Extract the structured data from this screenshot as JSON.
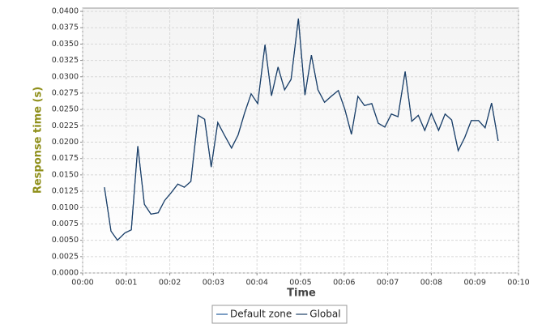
{
  "chart_data": {
    "type": "line",
    "x_label": "Time",
    "y_label": "Response time (s)",
    "x": [
      30,
      39,
      48,
      58,
      67,
      76,
      85,
      94,
      104,
      113,
      122,
      131,
      140,
      149,
      159,
      168,
      177,
      186,
      195,
      205,
      214,
      223,
      232,
      241,
      251,
      260,
      269,
      278,
      287,
      297,
      306,
      315,
      324,
      333,
      342,
      352,
      361,
      370,
      379,
      388,
      398,
      407,
      416,
      425,
      434,
      444,
      453,
      462,
      471,
      480,
      490,
      499,
      508,
      517,
      526,
      535,
      545,
      554,
      563,
      572
    ],
    "series": [
      {
        "name": "Default zone",
        "color": "#245e9c",
        "values": [
          0.0131,
          0.0064,
          0.005,
          0.0061,
          0.0066,
          0.0194,
          0.0105,
          0.009,
          0.0092,
          0.0111,
          0.0123,
          0.0136,
          0.0131,
          0.014,
          0.0241,
          0.0235,
          0.0162,
          0.023,
          0.0211,
          0.0191,
          0.0211,
          0.0245,
          0.0274,
          0.0259,
          0.0349,
          0.0271,
          0.0315,
          0.028,
          0.0296,
          0.0389,
          0.0272,
          0.0333,
          0.028,
          0.0261,
          0.027,
          0.0279,
          0.025,
          0.0212,
          0.027,
          0.0256,
          0.0259,
          0.0229,
          0.0223,
          0.0243,
          0.0239,
          0.0308,
          0.0232,
          0.0241,
          0.0218,
          0.0244,
          0.0218,
          0.0243,
          0.0234,
          0.0187,
          0.0207,
          0.0233,
          0.0233,
          0.0222,
          0.026,
          0.0202
        ]
      },
      {
        "name": "Global",
        "color": "#1d3f66",
        "values": [
          0.0131,
          0.0064,
          0.005,
          0.0061,
          0.0066,
          0.0194,
          0.0105,
          0.009,
          0.0092,
          0.0111,
          0.0123,
          0.0136,
          0.0131,
          0.014,
          0.0241,
          0.0235,
          0.0162,
          0.023,
          0.0211,
          0.0191,
          0.0211,
          0.0245,
          0.0274,
          0.0259,
          0.0349,
          0.0271,
          0.0315,
          0.028,
          0.0296,
          0.0389,
          0.0272,
          0.0333,
          0.028,
          0.0261,
          0.027,
          0.0279,
          0.025,
          0.0212,
          0.027,
          0.0256,
          0.0259,
          0.0229,
          0.0223,
          0.0243,
          0.0239,
          0.0308,
          0.0232,
          0.0241,
          0.0218,
          0.0244,
          0.0218,
          0.0243,
          0.0234,
          0.0187,
          0.0207,
          0.0233,
          0.0233,
          0.0222,
          0.026,
          0.0202
        ]
      }
    ],
    "xlim": [
      0,
      600
    ],
    "xticks": [
      {
        "value": 0,
        "label": "00:00"
      },
      {
        "value": 60,
        "label": "00:01"
      },
      {
        "value": 120,
        "label": "00:02"
      },
      {
        "value": 180,
        "label": "00:03"
      },
      {
        "value": 240,
        "label": "00:04"
      },
      {
        "value": 300,
        "label": "00:05"
      },
      {
        "value": 360,
        "label": "00:06"
      },
      {
        "value": 420,
        "label": "00:07"
      },
      {
        "value": 480,
        "label": "00:08"
      },
      {
        "value": 540,
        "label": "00:09"
      },
      {
        "value": 600,
        "label": "00:10"
      }
    ],
    "ylim": [
      0,
      0.0405
    ],
    "yticks": [
      {
        "value": 0,
        "label": "0.0000"
      },
      {
        "value": 0.0025,
        "label": "0.0025"
      },
      {
        "value": 0.005,
        "label": "0.0050"
      },
      {
        "value": 0.0075,
        "label": "0.0075"
      },
      {
        "value": 0.01,
        "label": "0.0100"
      },
      {
        "value": 0.0125,
        "label": "0.0125"
      },
      {
        "value": 0.015,
        "label": "0.0150"
      },
      {
        "value": 0.0175,
        "label": "0.0175"
      },
      {
        "value": 0.02,
        "label": "0.0200"
      },
      {
        "value": 0.0225,
        "label": "0.0225"
      },
      {
        "value": 0.025,
        "label": "0.0250"
      },
      {
        "value": 0.0275,
        "label": "0.0275"
      },
      {
        "value": 0.03,
        "label": "0.0300"
      },
      {
        "value": 0.0325,
        "label": "0.0325"
      },
      {
        "value": 0.035,
        "label": "0.0350"
      },
      {
        "value": 0.0375,
        "label": "0.0375"
      },
      {
        "value": 0.04,
        "label": "0.0400"
      }
    ],
    "grid": true
  }
}
